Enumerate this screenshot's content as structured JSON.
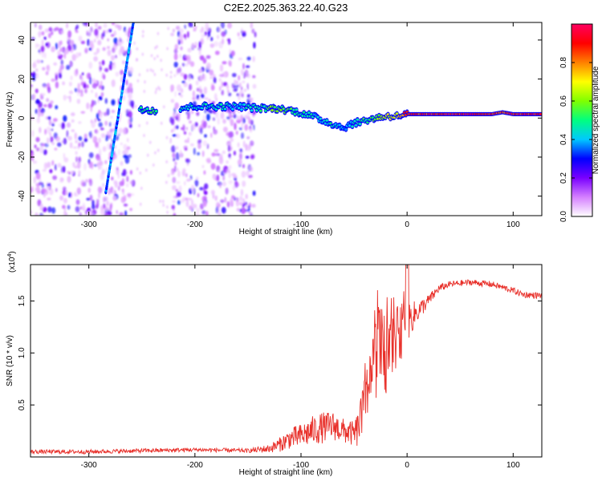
{
  "title": "C2E2.2025.363.22.40.G23",
  "chart_data": [
    {
      "type": "heatmap",
      "title": "C2E2.2025.363.22.40.G23",
      "xlabel": "Height of straight line (km)",
      "ylabel": "Frequency (Hz)",
      "xlim": [
        -355,
        127
      ],
      "ylim": [
        -50,
        49
      ],
      "xticks": [
        -300,
        -200,
        -100,
        0,
        100
      ],
      "yticks": [
        -40,
        -20,
        0,
        20,
        40
      ],
      "colorbar": {
        "label": "Normalized spectral amplitude",
        "range": [
          0,
          1
        ],
        "ticks": [
          "0.0",
          "0.2",
          "0.4",
          "0.6",
          "0.8"
        ],
        "tick_values": [
          0,
          0.2,
          0.4,
          0.6,
          0.8
        ],
        "colors": [
          "#ffffff",
          "#d580ff",
          "#7a00ff",
          "#0000ff",
          "#00c8ff",
          "#00ff80",
          "#80ff00",
          "#ffff00",
          "#ff8000",
          "#ff0000",
          "#ff0060"
        ]
      },
      "features": {
        "noise_regions": [
          [
            -355,
            -258
          ],
          [
            -222,
            -143
          ]
        ],
        "streak": {
          "x": [
            -284,
            -258
          ],
          "y": [
            -38,
            49
          ]
        },
        "ridge": {
          "x": [
            -252,
            -240,
            -228,
            -214,
            -200,
            -180,
            -160,
            -140,
            -125,
            -110,
            -95,
            -80,
            -70,
            -60,
            -52,
            -45,
            -38,
            -30,
            -20,
            -10,
            0,
            20,
            40,
            60,
            80,
            90,
            100,
            110,
            127
          ],
          "y": [
            5,
            4,
            3,
            5,
            6,
            6,
            6,
            5,
            5,
            4,
            2,
            -1,
            -3,
            -5,
            -3,
            -2,
            -1,
            0,
            1,
            1,
            2,
            2,
            2,
            2,
            2,
            3,
            2,
            2,
            2
          ],
          "amplitude": [
            0.5,
            0.6,
            0.55,
            0.5,
            0.45,
            0.5,
            0.45,
            0.5,
            0.6,
            0.55,
            0.5,
            0.45,
            0.5,
            0.4,
            0.45,
            0.5,
            0.55,
            0.6,
            0.7,
            0.75,
            0.9,
            0.92,
            0.95,
            0.95,
            0.95,
            0.9,
            0.95,
            0.95,
            0.95
          ]
        }
      }
    },
    {
      "type": "line",
      "xlabel": "Height of straight line (km)",
      "ylabel": "SNR (10 * v/v)",
      "multiplier_label": "(x10",
      "multiplier_exponent": "4",
      "xlim": [
        -355,
        127
      ],
      "ylim": [
        0,
        1.85
      ],
      "xticks": [
        -300,
        -200,
        -100,
        0,
        100
      ],
      "yticks": [
        0.5,
        1.0,
        1.5
      ],
      "ytick_labels": [
        "0.5",
        "1.0",
        "1.5"
      ],
      "color": "#e8302a",
      "series": [
        {
          "name": "SNR",
          "x": [
            -355,
            -300,
            -250,
            -200,
            -150,
            -130,
            -120,
            -110,
            -100,
            -90,
            -80,
            -70,
            -60,
            -50,
            -45,
            -40,
            -35,
            -30,
            -25,
            -20,
            -15,
            -10,
            -5,
            0,
            10,
            20,
            30,
            40,
            60,
            80,
            100,
            110,
            127
          ],
          "y": [
            0.05,
            0.05,
            0.06,
            0.07,
            0.06,
            0.08,
            0.12,
            0.18,
            0.2,
            0.25,
            0.28,
            0.3,
            0.25,
            0.22,
            0.28,
            0.5,
            0.7,
            0.95,
            1.05,
            1.0,
            1.1,
            1.15,
            1.2,
            1.3,
            1.4,
            1.5,
            1.62,
            1.66,
            1.68,
            1.66,
            1.6,
            1.56,
            1.55
          ],
          "noise": [
            0.02,
            0.02,
            0.02,
            0.02,
            0.02,
            0.04,
            0.07,
            0.1,
            0.12,
            0.14,
            0.15,
            0.14,
            0.12,
            0.12,
            0.2,
            0.3,
            0.35,
            0.4,
            0.4,
            0.4,
            0.3,
            0.3,
            0.25,
            0.2,
            0.1,
            0.06,
            0.04,
            0.03,
            0.03,
            0.03,
            0.03,
            0.03,
            0.03
          ]
        }
      ]
    }
  ]
}
